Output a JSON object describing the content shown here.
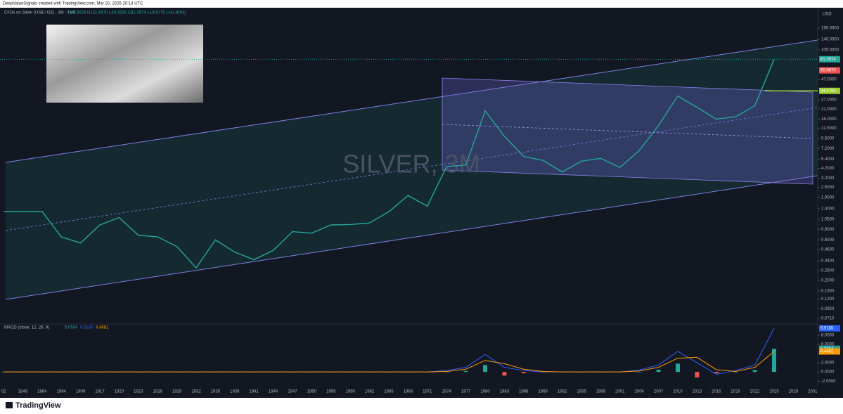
{
  "header": {
    "credit": "DeepValueSignals created with TradingView.com, Mar 20, 2026 20:14 UTC",
    "symbol": "CFDs on Silver (US$ / OZ) · 3M · TVC",
    "ohlc": "O49.3526 H121.6470 L49.3526 C81.3574 +19.6775 (+31.80%)",
    "currency": "USD"
  },
  "watermark": "SILVER, 3M",
  "logo": "TradingView",
  "chart_data": [
    {
      "type": "line",
      "log_scale": true,
      "categories": [
        "02",
        "1848",
        "1864",
        "1894",
        "1909",
        "1917",
        "1920",
        "1923",
        "1926",
        "1929",
        "1932",
        "1935",
        "1938",
        "1941",
        "1944",
        "1947",
        "1950",
        "1956",
        "1959",
        "1962",
        "1965",
        "1968",
        "1971",
        "1974",
        "1977",
        "1980",
        "1983",
        "1986",
        "1989",
        "1992",
        "1995",
        "1998",
        "2001",
        "2004",
        "2007",
        "2010",
        "2013",
        "2016",
        "2019",
        "2022",
        "2025",
        "2028",
        "2031"
      ],
      "series": [
        {
          "color": "#26a69a",
          "values": [
            1.3,
            1.3,
            1.3,
            0.65,
            0.55,
            0.9,
            1.1,
            0.68,
            0.65,
            0.5,
            0.28,
            0.6,
            0.43,
            0.35,
            0.45,
            0.75,
            0.72,
            0.9,
            0.91,
            0.95,
            1.29,
            2.0,
            1.5,
            4.4,
            4.6,
            20,
            10,
            5.8,
            5.2,
            3.8,
            5.1,
            5.5,
            4.3,
            6.8,
            13.4,
            30,
            22,
            16,
            17,
            23,
            81.3574,
            null,
            null
          ]
        }
      ],
      "ylim": [
        0.062,
        324
      ],
      "yticks": [
        {
          "value": 190,
          "label": "190.0000"
        },
        {
          "value": 140,
          "label": "140.0000"
        },
        {
          "value": 105,
          "label": "105.0000"
        },
        {
          "value": 47,
          "label": "47.0000"
        },
        {
          "value": 27,
          "label": "27.0000"
        },
        {
          "value": 21,
          "label": "21.0000"
        },
        {
          "value": 16,
          "label": "16.0000"
        },
        {
          "value": 12.5,
          "label": "12.5000"
        },
        {
          "value": 9.5,
          "label": "9.5000"
        },
        {
          "value": 7.2,
          "label": "7.2000"
        },
        {
          "value": 5.4,
          "label": "5.4000"
        },
        {
          "value": 4.2,
          "label": "4.2000"
        },
        {
          "value": 3.2,
          "label": "3.2000"
        },
        {
          "value": 2.5,
          "label": "2.5000"
        },
        {
          "value": 1.9,
          "label": "1.9000"
        },
        {
          "value": 1.4,
          "label": "1.4000"
        },
        {
          "value": 1.05,
          "label": "1.0500"
        },
        {
          "value": 0.8,
          "label": "0.8000"
        },
        {
          "value": 0.6,
          "label": "0.6000"
        },
        {
          "value": 0.46,
          "label": "0.4600"
        },
        {
          "value": 0.34,
          "label": "0.3400"
        },
        {
          "value": 0.26,
          "label": "0.2600"
        },
        {
          "value": 0.2,
          "label": "0.2000"
        },
        {
          "value": 0.15,
          "label": "0.1500"
        },
        {
          "value": 0.12,
          "label": "0.1200"
        },
        {
          "value": 0.092,
          "label": "0.0920"
        },
        {
          "value": 0.071,
          "label": "0.0710"
        }
      ],
      "price_tags": [
        {
          "value": 81.3574,
          "label": "81.3574",
          "color": "#26a69a"
        },
        {
          "value": 60.087,
          "label": "60.0870",
          "color": "#ef5350"
        },
        {
          "value": 34.476,
          "label": "34.4760",
          "color": "#9acd32"
        }
      ]
    },
    {
      "type": "macd",
      "label": "MACD (close, 12, 26, 9)",
      "series": [
        {
          "kind": "histogram",
          "color": "#26a69a",
          "negative_color": "#ef5350",
          "values": [
            0,
            0,
            0,
            0,
            0,
            0,
            0,
            0,
            0,
            0,
            0,
            0,
            0,
            0,
            0,
            0,
            0,
            0,
            0,
            0,
            0,
            0,
            0,
            0,
            0.2,
            1.5,
            -0.8,
            -0.3,
            0,
            0,
            0,
            0,
            0,
            0,
            0.5,
            1.8,
            -1.2,
            -0.3,
            0,
            0.4,
            5.0504,
            null,
            null
          ]
        },
        {
          "kind": "line",
          "color": "#2962ff",
          "values": [
            0,
            0,
            0,
            0,
            0,
            0,
            0,
            0,
            0,
            0,
            0,
            0,
            0,
            0,
            0,
            0,
            0,
            0,
            0,
            0,
            0,
            0,
            0,
            0.3,
            1.0,
            3.8,
            1.0,
            0.3,
            0,
            0,
            0,
            0,
            0,
            0.4,
            1.5,
            4.5,
            2.0,
            -0.5,
            0.3,
            1.5,
            9.5185,
            null,
            null
          ]
        },
        {
          "kind": "line",
          "color": "#ff9800",
          "values": [
            0,
            0,
            0,
            0,
            0,
            0,
            0,
            0,
            0,
            0,
            0,
            0,
            0,
            0,
            0,
            0,
            0,
            0,
            0,
            0,
            0,
            0,
            0,
            0.1,
            0.6,
            2.5,
            1.8,
            0.6,
            0.1,
            0,
            0,
            0,
            0,
            0.2,
            1.0,
            3.0,
            3.2,
            0.5,
            0.1,
            1.0,
            4.4681,
            null,
            null
          ]
        }
      ],
      "ylim": [
        -3.2,
        10.3
      ],
      "yticks": [
        {
          "value": -2,
          "label": "-2.0000"
        },
        {
          "value": 0,
          "label": "0.0000"
        },
        {
          "value": 2,
          "label": "2.0000"
        },
        {
          "value": 4,
          "label": "4.0000"
        },
        {
          "value": 6,
          "label": "6.0000"
        },
        {
          "value": 8,
          "label": "8.0000"
        }
      ]
    }
  ]
}
